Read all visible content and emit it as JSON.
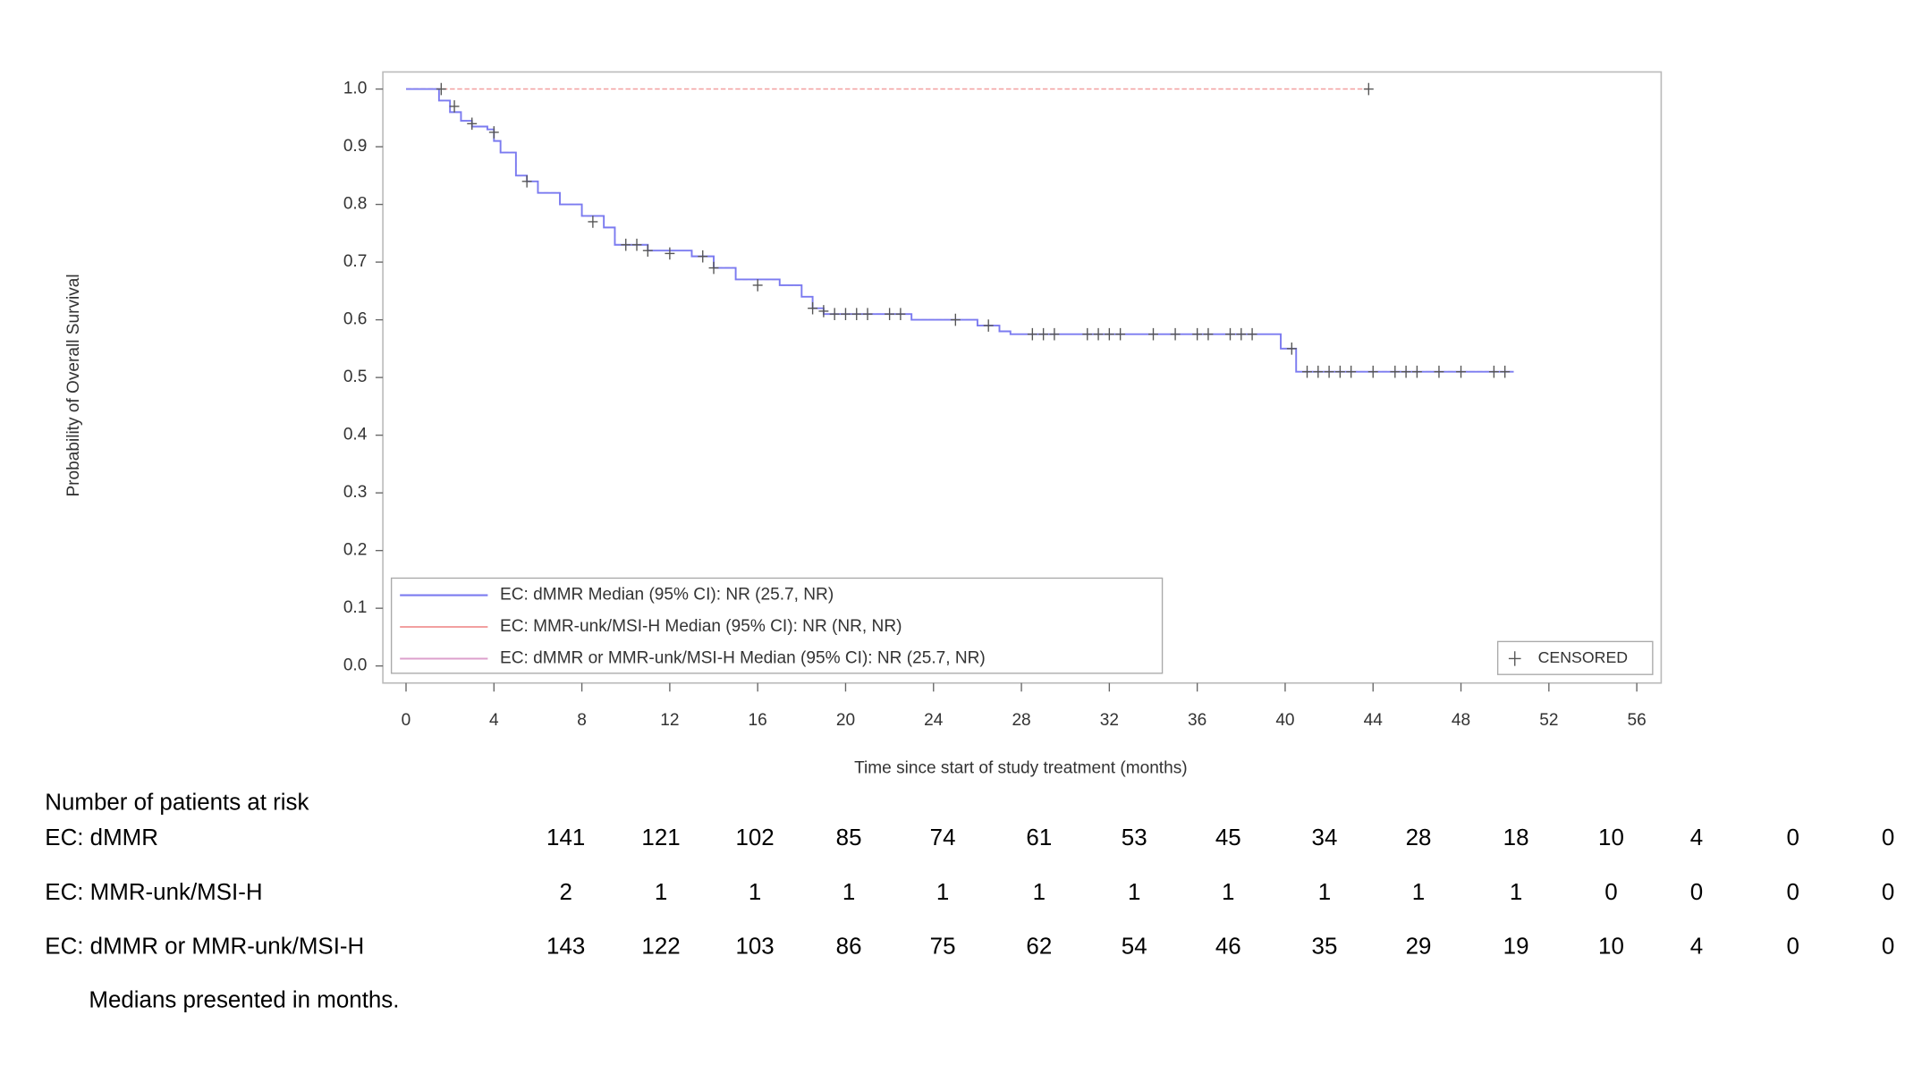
{
  "chart_data": {
    "type": "line",
    "step": true,
    "ylabel": "Probability of Overall Survival",
    "xlabel": "Time since start of study treatment (months)",
    "xlim": [
      0,
      56
    ],
    "xticks": [
      0,
      4,
      8,
      12,
      16,
      20,
      24,
      28,
      32,
      36,
      40,
      44,
      48,
      52,
      56
    ],
    "ylim": [
      0,
      1
    ],
    "yticks": [
      {
        "value": 0,
        "label": "0.0"
      },
      0.1,
      0.2,
      0.3,
      0.4,
      0.5,
      0.6,
      0.7,
      0.8,
      0.9,
      {
        "value": 1,
        "label": "1.0"
      }
    ],
    "legend": "lower left",
    "series": [
      {
        "name": "EC: dMMR Median (95% CI): NR (25.7, NR)",
        "color": "#7b7bf0",
        "x": [
          0,
          1.5,
          2,
          2.5,
          3,
          3.7,
          4,
          4.3,
          5,
          5.5,
          6,
          7,
          8,
          9,
          9.5,
          11,
          13,
          14,
          15,
          17,
          18,
          18.5,
          19,
          23,
          26,
          27,
          27.5,
          39.8,
          40.5,
          50.4
        ],
        "y": [
          1,
          0.98,
          0.96,
          0.945,
          0.935,
          0.93,
          0.91,
          0.89,
          0.85,
          0.84,
          0.82,
          0.8,
          0.78,
          0.76,
          0.73,
          0.72,
          0.71,
          0.69,
          0.67,
          0.66,
          0.64,
          0.62,
          0.61,
          0.6,
          0.59,
          0.58,
          0.575,
          0.55,
          0.51,
          0.51
        ]
      },
      {
        "name": "EC: MMR-unk/MSI-H Median (95% CI): NR (NR, NR)",
        "color": "#f2a0a0",
        "x": [
          0,
          43.8
        ],
        "y": [
          1,
          1
        ]
      },
      {
        "name": "EC: dMMR or MMR-unk/MSI-H Median (95% CI): NR (25.7, NR)",
        "color": "#dca0cc",
        "x": [
          0,
          1.5,
          2,
          2.5,
          3,
          3.7,
          4,
          4.3,
          5,
          5.5,
          6,
          7,
          8,
          9,
          9.5,
          11,
          13,
          14,
          15,
          17,
          18,
          18.5,
          19,
          23,
          26,
          27,
          27.5,
          39.8,
          40.5,
          50.4
        ],
        "y": [
          1,
          0.98,
          0.96,
          0.945,
          0.935,
          0.93,
          0.91,
          0.89,
          0.85,
          0.84,
          0.82,
          0.8,
          0.78,
          0.76,
          0.73,
          0.72,
          0.71,
          0.69,
          0.67,
          0.66,
          0.64,
          0.62,
          0.61,
          0.6,
          0.59,
          0.58,
          0.575,
          0.55,
          0.51,
          0.51
        ]
      }
    ],
    "censored": {
      "name": "CENSORED",
      "color": "#555555",
      "x": [
        1.6,
        2.2,
        3,
        4,
        5.5,
        8.5,
        10,
        10.5,
        11,
        12,
        13.5,
        14,
        16,
        18.5,
        19,
        19.5,
        20,
        20.5,
        21,
        22,
        22.5,
        25,
        26.5,
        28.5,
        29,
        29.5,
        31,
        31.5,
        32,
        32.5,
        34,
        35,
        36,
        36.5,
        37.5,
        38,
        38.5,
        40.3,
        41,
        41.5,
        42,
        42.5,
        43,
        44,
        45,
        45.5,
        46,
        47,
        48,
        49.5,
        50,
        43.8
      ],
      "y": [
        1,
        0.97,
        0.94,
        0.925,
        0.84,
        0.77,
        0.73,
        0.73,
        0.72,
        0.715,
        0.71,
        0.69,
        0.66,
        0.62,
        0.615,
        0.61,
        0.61,
        0.61,
        0.61,
        0.61,
        0.61,
        0.6,
        0.59,
        0.575,
        0.575,
        0.575,
        0.575,
        0.575,
        0.575,
        0.575,
        0.575,
        0.575,
        0.575,
        0.575,
        0.575,
        0.575,
        0.575,
        0.55,
        0.51,
        0.51,
        0.51,
        0.51,
        0.51,
        0.51,
        0.51,
        0.51,
        0.51,
        0.51,
        0.51,
        0.51,
        0.51,
        1
      ]
    }
  },
  "risk_table": {
    "title": "Number of patients at risk",
    "rows": [
      {
        "label": "EC: dMMR",
        "values": [
          "141",
          "121",
          "102",
          "85",
          "74",
          "61",
          "53",
          "45",
          "34",
          "28",
          "18",
          "10",
          "4",
          "0",
          "0"
        ]
      },
      {
        "label": "EC: MMR-unk/MSI-H",
        "values": [
          "2",
          "1",
          "1",
          "1",
          "1",
          "1",
          "1",
          "1",
          "1",
          "1",
          "1",
          "0",
          "0",
          "0",
          "0"
        ]
      },
      {
        "label": "EC: dMMR or MMR-unk/MSI-H",
        "values": [
          "143",
          "122",
          "103",
          "86",
          "75",
          "62",
          "54",
          "46",
          "35",
          "29",
          "19",
          "10",
          "4",
          "0",
          "0"
        ]
      }
    ],
    "footnote": "Medians presented in months."
  }
}
